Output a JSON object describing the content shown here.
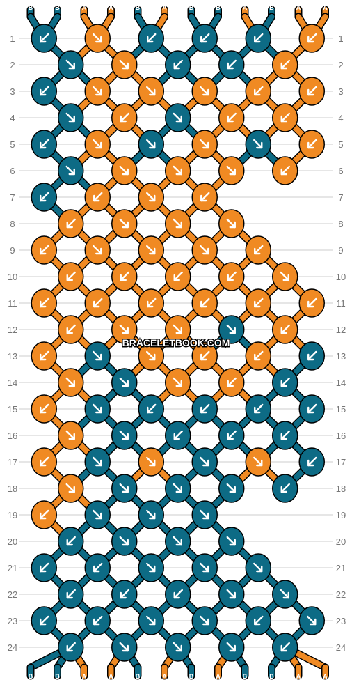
{
  "watermark": "BRACELETBOOK.COM",
  "colors": {
    "A": "#f08a23",
    "B": "#0d6b85",
    "outline": "#000000",
    "arrow": "#ffffff",
    "row_line": "#cccccc",
    "label": "#777777"
  },
  "pattern": {
    "strands_top": [
      "B",
      "B",
      "A",
      "A",
      "B",
      "A",
      "B",
      "B",
      "A",
      "B",
      "A",
      "A"
    ],
    "strands_bottom": [
      "B",
      "B",
      "A",
      "A",
      "B",
      "A",
      "B",
      "A",
      "B",
      "B",
      "A",
      "A"
    ],
    "rows": [
      {
        "label": "1",
        "knots": [
          [
            "B",
            "dl"
          ],
          [
            "A",
            "dr"
          ],
          [
            "B",
            "dl"
          ],
          [
            "B",
            "dl"
          ],
          [
            "B",
            "dl"
          ],
          [
            "A",
            "dl"
          ]
        ]
      },
      {
        "label": "2",
        "knots": [
          [
            "B",
            "dr"
          ],
          [
            "A",
            "dr"
          ],
          [
            "B",
            "dl"
          ],
          [
            "B",
            "dl"
          ],
          [
            "A",
            "dl"
          ]
        ]
      },
      {
        "label": "3",
        "knots": [
          [
            "B",
            "dl"
          ],
          [
            "A",
            "dr"
          ],
          [
            "A",
            "dr"
          ],
          [
            "A",
            "dr"
          ],
          [
            "A",
            "dl"
          ],
          [
            "A",
            "dl"
          ]
        ]
      },
      {
        "label": "4",
        "knots": [
          [
            "B",
            "dr"
          ],
          [
            "A",
            "dl"
          ],
          [
            "B",
            "dr"
          ],
          [
            "A",
            "dl"
          ],
          [
            "A",
            "dl"
          ]
        ]
      },
      {
        "label": "5",
        "knots": [
          [
            "B",
            "dl"
          ],
          [
            "A",
            "dr"
          ],
          [
            "B",
            "dr"
          ],
          [
            "A",
            "dr"
          ],
          [
            "B",
            "dr"
          ],
          [
            "A",
            "dl"
          ]
        ]
      },
      {
        "label": "6",
        "knots": [
          [
            "B",
            "dr"
          ],
          [
            "A",
            "dr"
          ],
          [
            "A",
            "dr"
          ],
          [
            "A",
            "dr"
          ],
          [
            "A",
            "dl"
          ]
        ]
      },
      {
        "label": "7",
        "knots": [
          [
            "B",
            "dl"
          ],
          [
            "A",
            "dl"
          ],
          [
            "A",
            "dr"
          ],
          [
            "A",
            "dl"
          ]
        ]
      },
      {
        "label": "8",
        "knots": [
          [
            "A",
            "dl"
          ],
          [
            "A",
            "dr"
          ],
          [
            "A",
            "dr"
          ],
          [
            "A",
            "dr"
          ]
        ]
      },
      {
        "label": "9",
        "knots": [
          [
            "A",
            "dl"
          ],
          [
            "A",
            "dr"
          ],
          [
            "A",
            "dr"
          ],
          [
            "A",
            "dr"
          ],
          [
            "A",
            "dl"
          ]
        ]
      },
      {
        "label": "10",
        "knots": [
          [
            "A",
            "dl"
          ],
          [
            "A",
            "dl"
          ],
          [
            "A",
            "dl"
          ],
          [
            "A",
            "dl"
          ],
          [
            "A",
            "dr"
          ]
        ]
      },
      {
        "label": "11",
        "knots": [
          [
            "A",
            "dl"
          ],
          [
            "A",
            "dl"
          ],
          [
            "A",
            "dl"
          ],
          [
            "A",
            "dl"
          ],
          [
            "A",
            "dl"
          ],
          [
            "A",
            "dl"
          ]
        ]
      },
      {
        "label": "12",
        "knots": [
          [
            "A",
            "dl"
          ],
          [
            "A",
            "dr"
          ],
          [
            "A",
            "dr"
          ],
          [
            "B",
            "dr"
          ],
          [
            "A",
            "dl"
          ]
        ]
      },
      {
        "label": "13",
        "knots": [
          [
            "A",
            "dl"
          ],
          [
            "B",
            "dr"
          ],
          [
            "A",
            "dr"
          ],
          [
            "A",
            "dl"
          ],
          [
            "A",
            "dl"
          ],
          [
            "B",
            "dl"
          ]
        ]
      },
      {
        "label": "14",
        "knots": [
          [
            "A",
            "dr"
          ],
          [
            "B",
            "dr"
          ],
          [
            "A",
            "dr"
          ],
          [
            "A",
            "dl"
          ],
          [
            "B",
            "dl"
          ]
        ]
      },
      {
        "label": "15",
        "knots": [
          [
            "A",
            "dl"
          ],
          [
            "B",
            "dr"
          ],
          [
            "B",
            "dl"
          ],
          [
            "B",
            "dl"
          ],
          [
            "B",
            "dl"
          ],
          [
            "B",
            "dl"
          ]
        ]
      },
      {
        "label": "16",
        "knots": [
          [
            "A",
            "dr"
          ],
          [
            "B",
            "dr"
          ],
          [
            "B",
            "dl"
          ],
          [
            "B",
            "dl"
          ],
          [
            "B",
            "dl"
          ]
        ]
      },
      {
        "label": "17",
        "knots": [
          [
            "A",
            "dl"
          ],
          [
            "B",
            "dr"
          ],
          [
            "A",
            "dr"
          ],
          [
            "B",
            "dr"
          ],
          [
            "A",
            "dr"
          ],
          [
            "B",
            "dl"
          ]
        ]
      },
      {
        "label": "18",
        "knots": [
          [
            "A",
            "dr"
          ],
          [
            "B",
            "dr"
          ],
          [
            "B",
            "dr"
          ],
          [
            "B",
            "dr"
          ],
          [
            "B",
            "dl"
          ]
        ]
      },
      {
        "label": "19",
        "knots": [
          [
            "A",
            "dl"
          ],
          [
            "B",
            "dr"
          ],
          [
            "B",
            "dr"
          ],
          [
            "B",
            "dr"
          ]
        ]
      },
      {
        "label": "20",
        "knots": [
          [
            "B",
            "dl"
          ],
          [
            "B",
            "dr"
          ],
          [
            "B",
            "dr"
          ],
          [
            "B",
            "dr"
          ]
        ]
      },
      {
        "label": "21",
        "knots": [
          [
            "B",
            "dl"
          ],
          [
            "B",
            "dl"
          ],
          [
            "B",
            "dr"
          ],
          [
            "B",
            "dr"
          ],
          [
            "B",
            "dr"
          ]
        ]
      },
      {
        "label": "22",
        "knots": [
          [
            "B",
            "dl"
          ],
          [
            "B",
            "dl"
          ],
          [
            "B",
            "dl"
          ],
          [
            "B",
            "dr"
          ],
          [
            "B",
            "dr"
          ]
        ]
      },
      {
        "label": "23",
        "knots": [
          [
            "B",
            "dl"
          ],
          [
            "B",
            "dl"
          ],
          [
            "B",
            "dr"
          ],
          [
            "B",
            "dr"
          ],
          [
            "B",
            "dl"
          ],
          [
            "B",
            "dr"
          ]
        ]
      },
      {
        "label": "24",
        "knots": [
          [
            "B",
            "dl"
          ],
          [
            "B",
            "dr"
          ],
          [
            "B",
            "dr"
          ],
          [
            "B",
            "dr"
          ],
          [
            "B",
            "dl"
          ]
        ]
      }
    ]
  }
}
